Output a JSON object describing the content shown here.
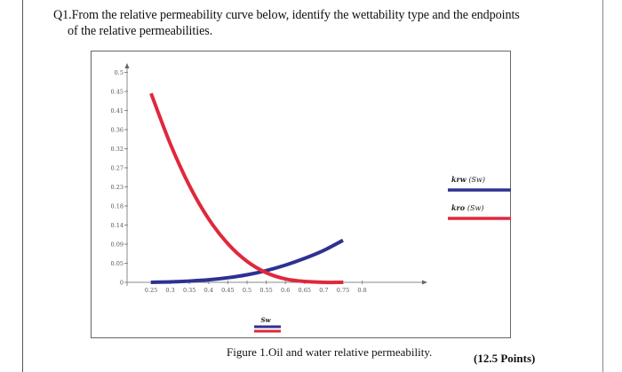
{
  "question": {
    "line1": "Q1.From the relative permeability curve below, identify the wettability type and the endpoints",
    "line2": "of the relative permeabilities."
  },
  "figure": {
    "caption": "Figure 1.Oil and water relative permeability.",
    "points": "(12.5 Points)"
  },
  "chart_data": {
    "type": "line",
    "title": "",
    "xlabel": "Sw",
    "ylabel": "",
    "x_ticks": [
      "0.25",
      "0.3",
      "0.35",
      "0.4",
      "0.45",
      "0.5",
      "0.55",
      "0.6",
      "0.65",
      "0.7",
      "0.75",
      "0.8"
    ],
    "y_ticks": [
      "0",
      "0.05",
      "0.09",
      "0.14",
      "0.18",
      "0.23",
      "0.27",
      "0.32",
      "0.36",
      "0.41",
      "0.45",
      "0.5"
    ],
    "xlim": [
      0.2,
      0.85
    ],
    "ylim": [
      0,
      0.52
    ],
    "grid": false,
    "legend_position": "right",
    "legend": [
      {
        "label": "krw",
        "suffix": "(Sw)",
        "color": "#2e3192"
      },
      {
        "label": "kro",
        "suffix": "(Sw)",
        "color": "#e0283d"
      }
    ],
    "series": [
      {
        "name": "krw (Sw)",
        "color": "#2e3192",
        "x": [
          0.25,
          0.3,
          0.35,
          0.4,
          0.45,
          0.5,
          0.55,
          0.6,
          0.65,
          0.7,
          0.75
        ],
        "y": [
          0.0,
          0.001,
          0.003,
          0.006,
          0.011,
          0.018,
          0.028,
          0.041,
          0.057,
          0.076,
          0.1
        ]
      },
      {
        "name": "kro (Sw)",
        "color": "#e0283d",
        "x": [
          0.25,
          0.3,
          0.35,
          0.4,
          0.45,
          0.5,
          0.55,
          0.6,
          0.65,
          0.7,
          0.75
        ],
        "y": [
          0.45,
          0.33,
          0.23,
          0.151,
          0.092,
          0.05,
          0.023,
          0.008,
          0.002,
          0.0,
          0.0
        ]
      }
    ]
  }
}
